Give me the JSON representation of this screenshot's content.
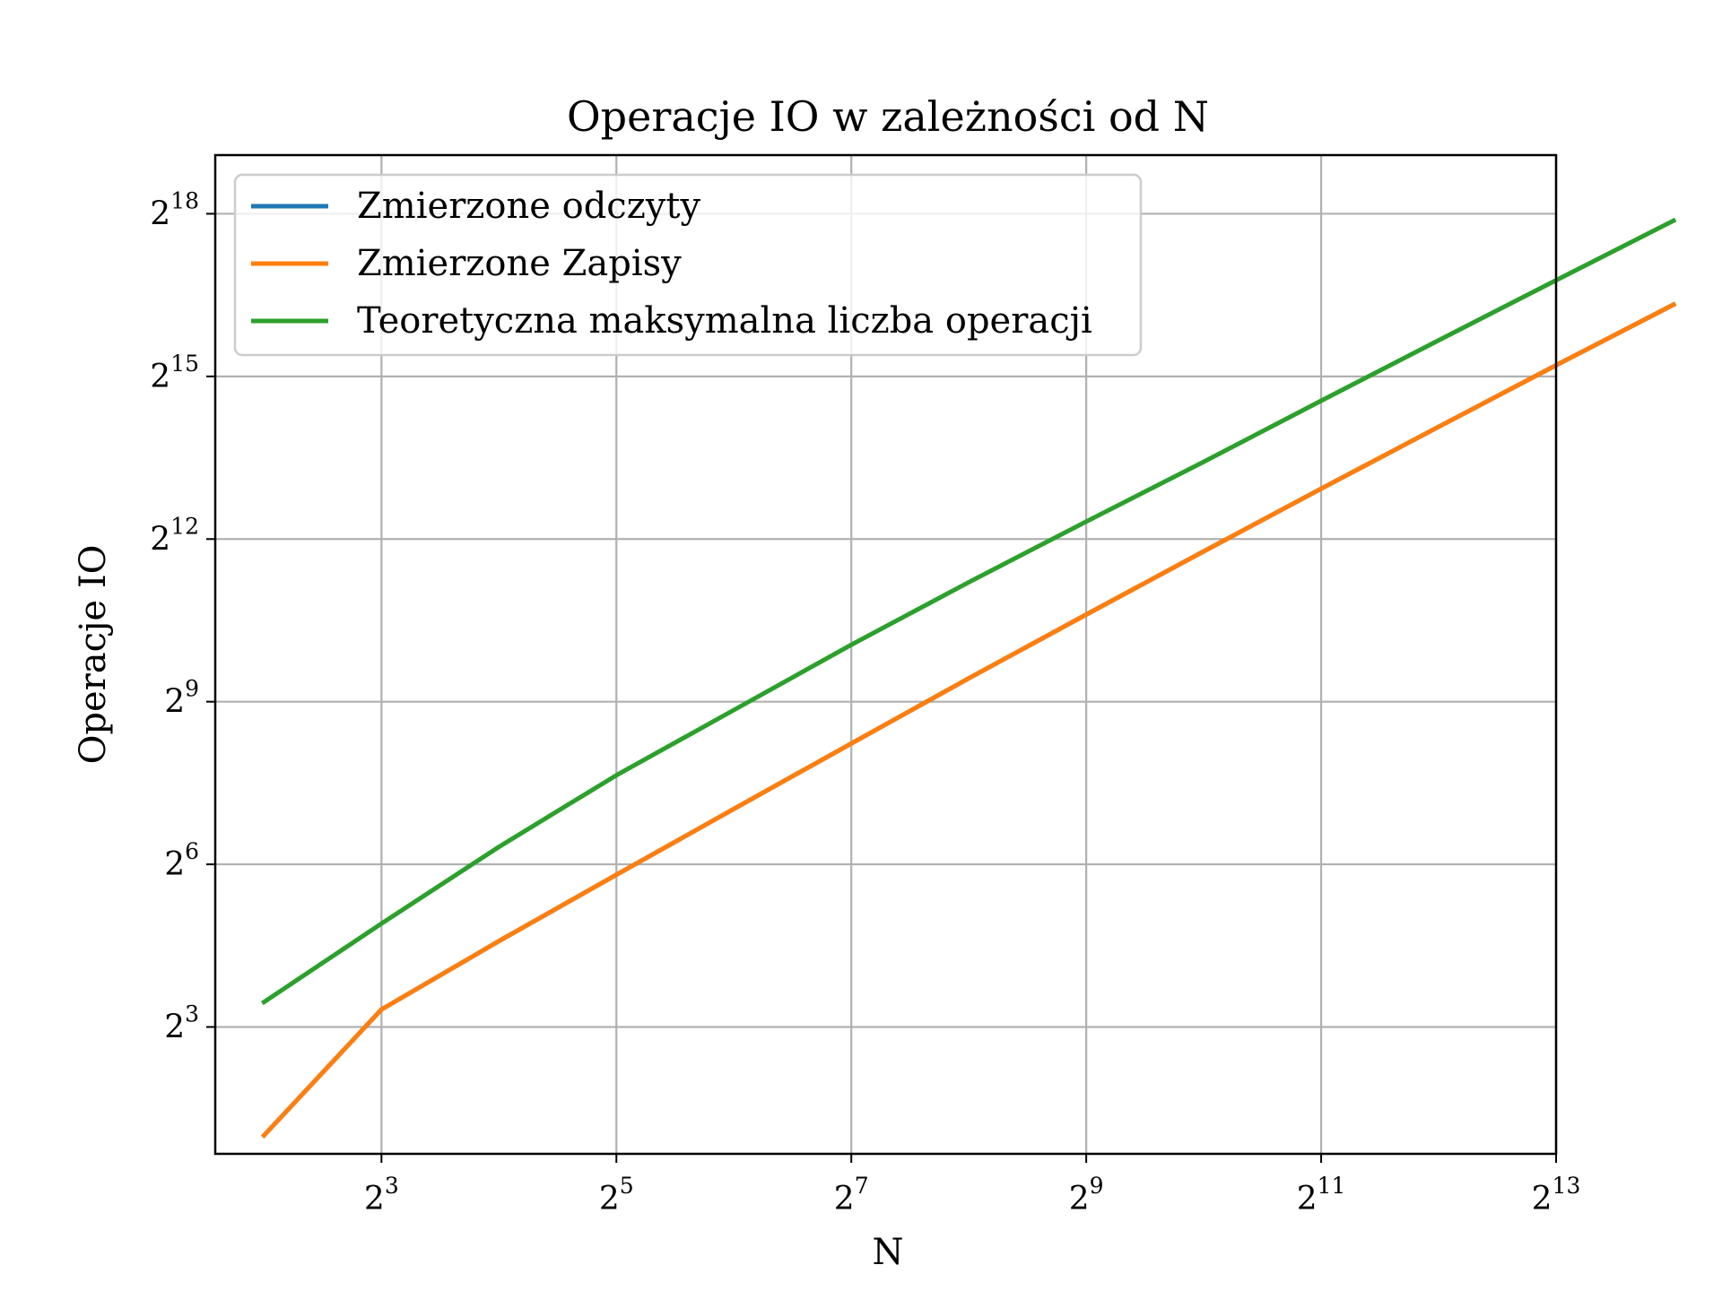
{
  "chart_data": {
    "type": "line",
    "title": "Operacje IO w zależności od N",
    "xlabel": "N",
    "ylabel": "Operacje IO",
    "xscale": "log2",
    "yscale": "log2",
    "xlim": [
      3.0,
      8192
    ],
    "ylim": [
      1.58,
      555000
    ],
    "grid": true,
    "legend_position": "top-left",
    "x_ticks": [
      {
        "value": 8,
        "base": "2",
        "exp": "3"
      },
      {
        "value": 32,
        "base": "2",
        "exp": "5"
      },
      {
        "value": 128,
        "base": "2",
        "exp": "7"
      },
      {
        "value": 512,
        "base": "2",
        "exp": "9"
      },
      {
        "value": 2048,
        "base": "2",
        "exp": "11"
      },
      {
        "value": 8192,
        "base": "2",
        "exp": "13"
      }
    ],
    "y_ticks": [
      {
        "value": 8,
        "base": "2",
        "exp": "3"
      },
      {
        "value": 64,
        "base": "2",
        "exp": "6"
      },
      {
        "value": 512,
        "base": "2",
        "exp": "9"
      },
      {
        "value": 4096,
        "base": "2",
        "exp": "12"
      },
      {
        "value": 32768,
        "base": "2",
        "exp": "15"
      },
      {
        "value": 262144,
        "base": "2",
        "exp": "18"
      }
    ],
    "x": [
      4,
      8,
      16,
      32,
      64,
      128,
      256,
      512,
      1024,
      2048,
      4096,
      8192,
      16384
    ],
    "series": [
      {
        "name": "Zmierzone odczyty",
        "color": "#1f77b4",
        "values": [
          2,
          10,
          24,
          56,
          130,
          300,
          690,
          1560,
          3500,
          7800,
          17200,
          37800,
          82000
        ]
      },
      {
        "name": "Zmierzone Zapisy",
        "color": "#ff7f0e",
        "values": [
          2,
          10,
          24,
          56,
          130,
          300,
          690,
          1560,
          3500,
          7800,
          17200,
          37800,
          82000
        ]
      },
      {
        "name": "Teoretyczna maksymalna liczba operacji",
        "color": "#2ca02c",
        "values": [
          11,
          30,
          80,
          200,
          460,
          1060,
          2360,
          5120,
          11000,
          24000,
          52000,
          112000,
          240000
        ]
      }
    ]
  }
}
